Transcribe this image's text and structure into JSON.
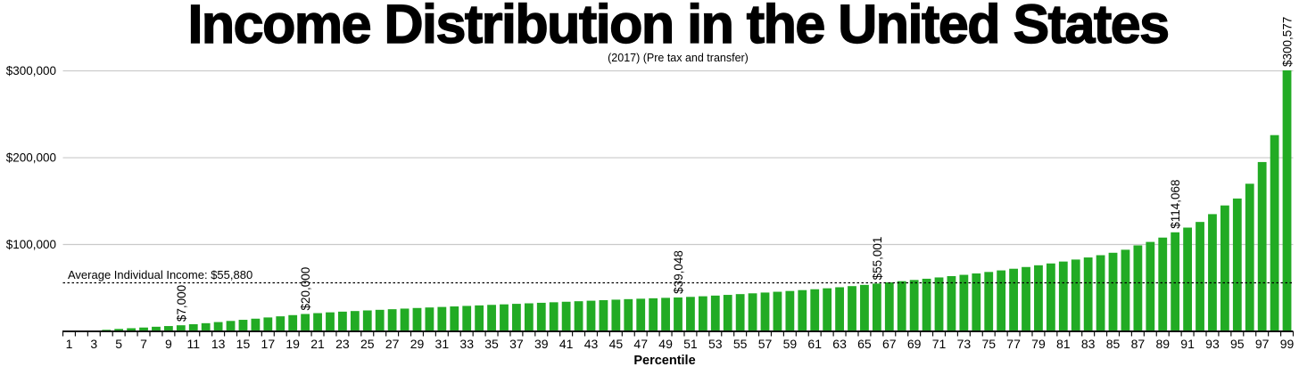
{
  "chart_data": {
    "type": "bar",
    "title": "Income Distribution in the United States",
    "subtitle": "(2017) (Pre tax and transfer)",
    "xlabel": "Percentile",
    "ylim": [
      0,
      300000
    ],
    "grid": true,
    "y_ticks": [
      {
        "value": 100000,
        "label": "$100,000"
      },
      {
        "value": 200000,
        "label": "$200,000"
      },
      {
        "value": 300000,
        "label": "$300,000"
      }
    ],
    "x_tick_labels": [
      "1",
      "3",
      "5",
      "7",
      "9",
      "11",
      "13",
      "15",
      "17",
      "19",
      "21",
      "23",
      "25",
      "27",
      "29",
      "31",
      "33",
      "35",
      "37",
      "39",
      "41",
      "43",
      "45",
      "47",
      "49",
      "51",
      "53",
      "55",
      "57",
      "59",
      "61",
      "63",
      "65",
      "67",
      "69",
      "71",
      "73",
      "75",
      "77",
      "79",
      "81",
      "83",
      "85",
      "87",
      "89",
      "91",
      "93",
      "95",
      "97",
      "99"
    ],
    "categories_note": "percentiles 1 through 99",
    "values": [
      100,
      500,
      1000,
      1800,
      2800,
      3600,
      4400,
      5300,
      6100,
      7000,
      8200,
      9400,
      10700,
      12000,
      13300,
      14600,
      16000,
      17300,
      18700,
      20000,
      21000,
      21900,
      22700,
      23400,
      24100,
      24800,
      25500,
      26200,
      26900,
      27500,
      28100,
      28700,
      29300,
      29900,
      30500,
      31100,
      31700,
      32300,
      32900,
      33500,
      34100,
      34700,
      35300,
      35900,
      36500,
      37100,
      37600,
      38100,
      38600,
      39048,
      39700,
      40400,
      41200,
      42000,
      42900,
      43800,
      44700,
      45600,
      46500,
      47500,
      48500,
      49600,
      50800,
      52100,
      53500,
      55001,
      56400,
      57800,
      59200,
      60600,
      62100,
      63600,
      65100,
      66700,
      68400,
      70200,
      72100,
      74100,
      76100,
      78200,
      80400,
      82700,
      85100,
      87700,
      90500,
      94000,
      99000,
      103000,
      108000,
      114068,
      119500,
      126000,
      135000,
      145000,
      153000,
      170000,
      195000,
      226000,
      300577
    ],
    "annotations": [
      {
        "percentile": 10,
        "label": "$7,000"
      },
      {
        "percentile": 20,
        "label": "$20,000"
      },
      {
        "percentile": 50,
        "label": "$39,048"
      },
      {
        "percentile": 66,
        "label": "$55,001"
      },
      {
        "percentile": 90,
        "label": "$114,068"
      },
      {
        "percentile": 99,
        "label": "$300,577"
      }
    ],
    "average_line": {
      "value": 55880,
      "label": "Average Individual Income: $55,880"
    },
    "legend": "none",
    "colors": {
      "bar": "#22AB24",
      "gridline": "#C9C9C9",
      "axis": "#111111",
      "average_line": "#000000",
      "text": "#000000",
      "background": "#FFFFFF"
    }
  }
}
